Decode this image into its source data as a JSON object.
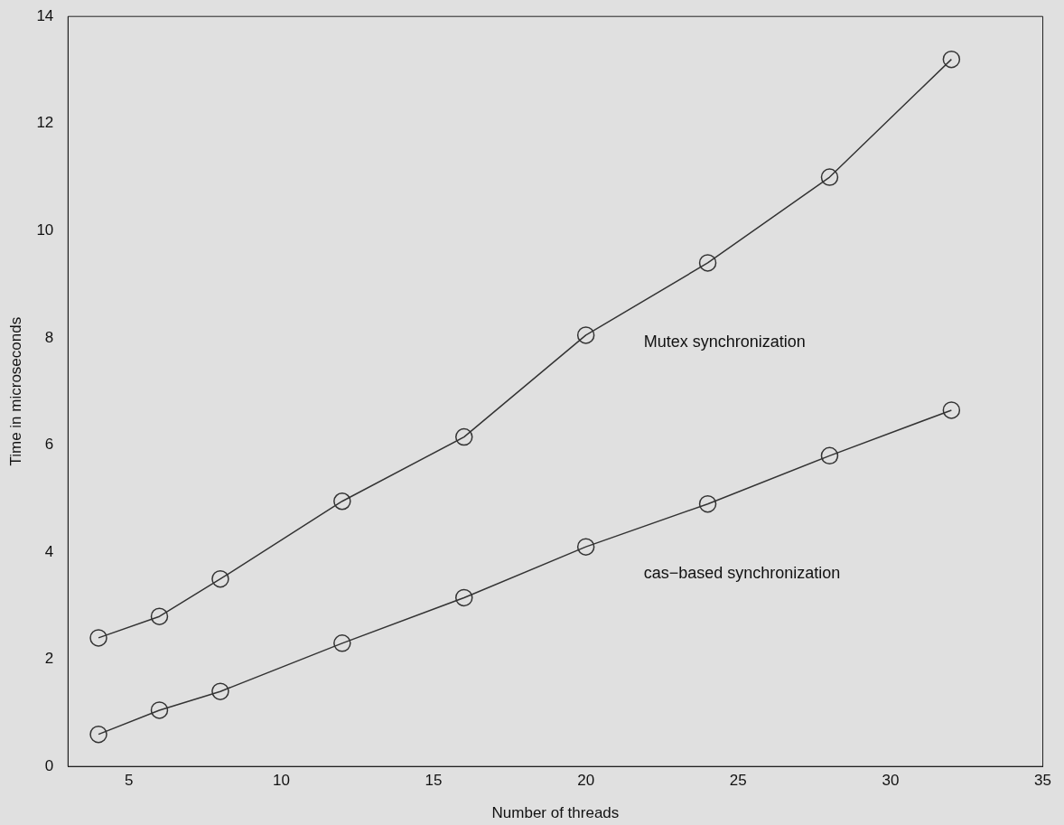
{
  "chart_data": {
    "type": "line",
    "xlabel": "Number of threads",
    "ylabel": "Time in microseconds",
    "x": [
      4,
      6,
      8,
      12,
      16,
      20,
      24,
      28,
      32
    ],
    "series": [
      {
        "name": "Mutex synchronization",
        "color": "#333333",
        "values": [
          2.4,
          2.8,
          3.5,
          4.95,
          6.15,
          8.05,
          9.4,
          11.0,
          13.2
        ]
      },
      {
        "name": "cas−based synchronization",
        "color": "#333333",
        "values": [
          0.6,
          1.05,
          1.4,
          2.3,
          3.15,
          4.1,
          4.9,
          5.8,
          6.65
        ]
      }
    ],
    "xlim": [
      3,
      35
    ],
    "xticks": [
      5,
      10,
      15,
      20,
      25,
      30,
      35
    ],
    "ylim": [
      0,
      14
    ],
    "yticks": [
      0,
      2,
      4,
      6,
      8,
      10,
      12,
      14
    ],
    "grid": false,
    "legend": false,
    "marker": "circle",
    "line_style": "solid"
  }
}
